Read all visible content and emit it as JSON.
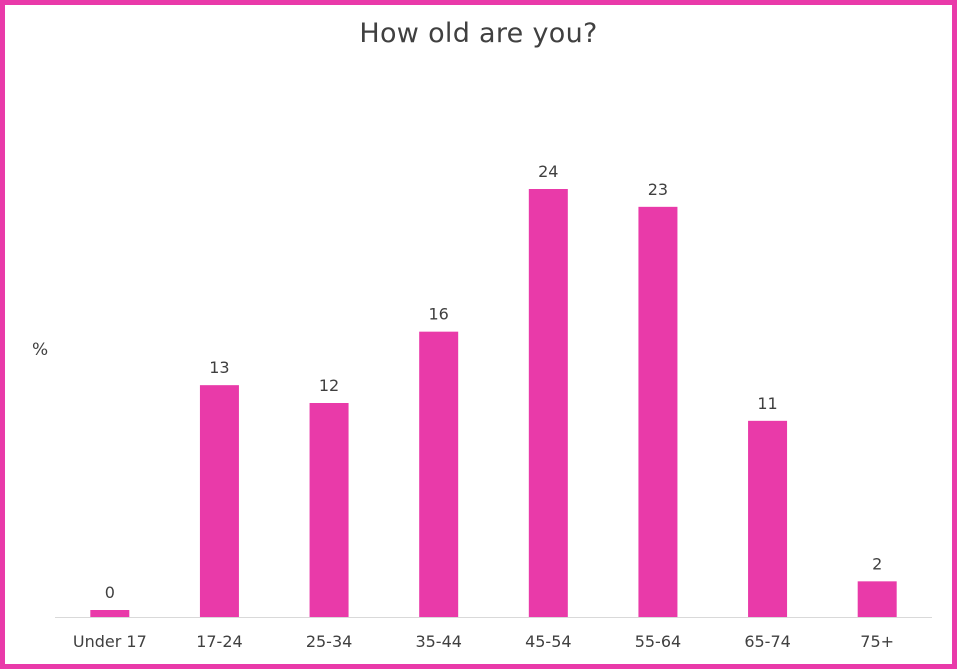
{
  "chart_data": {
    "type": "bar",
    "title": "How old are you?",
    "ylabel": "%",
    "xlabel": "",
    "categories": [
      "Under 17",
      "17-24",
      "25-34",
      "35-44",
      "45-54",
      "55-64",
      "65-74",
      "75+"
    ],
    "values": [
      0,
      13,
      12,
      16,
      24,
      23,
      11,
      2
    ],
    "ylim": [
      0,
      24
    ],
    "grid": false,
    "legend": "none",
    "bar_color": "#e93aa9",
    "frame_color": "#e93aa9",
    "text_color": "#404040"
  }
}
